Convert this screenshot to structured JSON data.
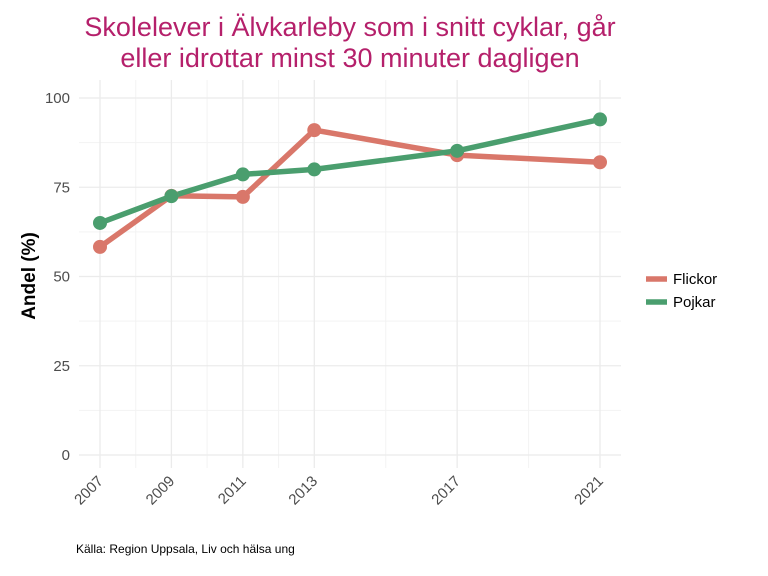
{
  "title_lines": [
    "Skolelever i Älvkarleby som i snitt cyklar, går",
    "eller idrottar minst 30 minuter dagligen"
  ],
  "caption": "Källa: Region Uppsala, Liv och hälsa ung",
  "chart_data": {
    "type": "line",
    "title": "Skolelever i Älvkarleby som i snitt cyklar, går eller idrottar minst 30 minuter dagligen",
    "xlabel": "",
    "ylabel": "Andel (%)",
    "x": [
      2007,
      2009,
      2011,
      2013,
      2017,
      2021
    ],
    "xlim": [
      2007,
      2021
    ],
    "ylim": [
      0,
      100
    ],
    "yticks": [
      0,
      25,
      50,
      75,
      100
    ],
    "series": [
      {
        "name": "Flickor",
        "color": "#d9776a",
        "values": [
          58.3,
          72.6,
          72.3,
          91.0,
          84.0,
          82.0
        ]
      },
      {
        "name": "Pojkar",
        "color": "#4a9e6e",
        "values": [
          65.0,
          72.5,
          78.6,
          80.0,
          85.2,
          94.0
        ]
      }
    ],
    "grid": true,
    "legend_position": "right"
  }
}
